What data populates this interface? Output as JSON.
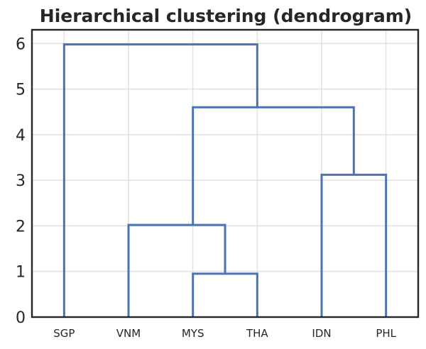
{
  "chart_data": {
    "type": "dendrogram",
    "title": "Hierarchical clustering (dendrogram)",
    "xlabel": "",
    "ylabel": "",
    "leaves": [
      "SGP",
      "VNM",
      "MYS",
      "THA",
      "IDN",
      "PHL"
    ],
    "y_ticks": [
      0,
      1,
      2,
      3,
      4,
      5,
      6
    ],
    "ylim": [
      0,
      6.3
    ],
    "grid": true,
    "color": "#4c72b0",
    "links": [
      {
        "left": [
          2
        ],
        "right": [
          3
        ],
        "left_height": 0,
        "right_height": 0,
        "height": 0.95
      },
      {
        "left": [
          1
        ],
        "right": [
          2,
          3
        ],
        "left_height": 0,
        "right_height": 0.95,
        "height": 2.02
      },
      {
        "left": [
          4
        ],
        "right": [
          5
        ],
        "left_height": 0,
        "right_height": 0,
        "height": 3.12
      },
      {
        "left": [
          1,
          2,
          3
        ],
        "right": [
          4,
          5
        ],
        "left_height": 2.02,
        "right_height": 3.12,
        "height": 4.6
      },
      {
        "left": [
          0
        ],
        "right": [
          1,
          2,
          3,
          4,
          5
        ],
        "left_height": 0,
        "right_height": 4.6,
        "height": 5.98
      }
    ]
  }
}
